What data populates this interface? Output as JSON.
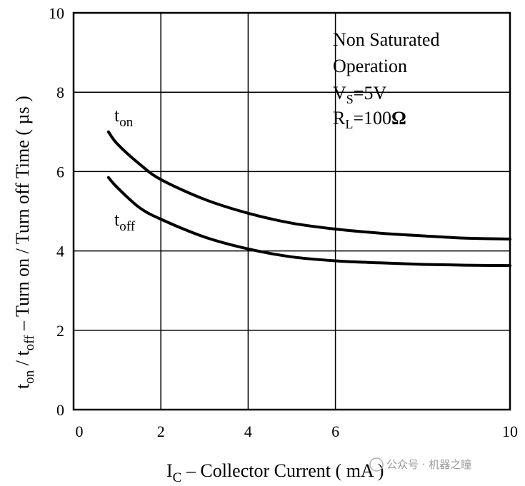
{
  "chart_data": {
    "type": "line",
    "xlabel": {
      "main": "I",
      "sub": "C",
      "rest": " – Collector Current ( mA )"
    },
    "ylabel": {
      "t1": "t",
      "s1": "on",
      "mid": " / t",
      "s2": "off",
      "rest": " – Turn on / Turn off Time ( µs )"
    },
    "xlim": [
      0,
      10
    ],
    "ylim": [
      0,
      10
    ],
    "x_ticks": [
      "0",
      "2",
      "4",
      "6",
      "10"
    ],
    "x_tick_values": [
      0,
      2,
      4,
      6,
      10
    ],
    "y_ticks": [
      "0",
      "2",
      "4",
      "6",
      "8",
      "10"
    ],
    "y_tick_values": [
      0,
      2,
      4,
      6,
      8,
      10
    ],
    "grid": true,
    "series": [
      {
        "name": "t_on",
        "label_main": "t",
        "label_sub": "on",
        "x": [
          0.8,
          1.0,
          1.5,
          2.0,
          3.0,
          4.0,
          5.0,
          6.0,
          7.0,
          8.0,
          9.0,
          10.0
        ],
        "y": [
          7.0,
          6.7,
          6.2,
          5.8,
          5.3,
          4.95,
          4.7,
          4.55,
          4.45,
          4.38,
          4.32,
          4.3
        ]
      },
      {
        "name": "t_off",
        "label_main": "t",
        "label_sub": "off",
        "x": [
          0.8,
          1.0,
          1.5,
          2.0,
          3.0,
          4.0,
          5.0,
          6.0,
          7.0,
          8.0,
          9.0,
          10.0
        ],
        "y": [
          5.85,
          5.6,
          5.1,
          4.8,
          4.35,
          4.05,
          3.85,
          3.75,
          3.7,
          3.66,
          3.64,
          3.63
        ]
      }
    ],
    "annotation": {
      "line1": "Non Saturated",
      "line2": "Operation",
      "line3_main": "V",
      "line3_sub": "S",
      "line3_rest": "=5V",
      "line4_main": "R",
      "line4_sub": "L",
      "line4_rest": "=100",
      "line4_omega": "Ω"
    }
  },
  "watermark": "公众号 · 机器之瞳",
  "colors": {
    "line": "#000000",
    "grid": "#000000",
    "background": "#ffffff"
  }
}
